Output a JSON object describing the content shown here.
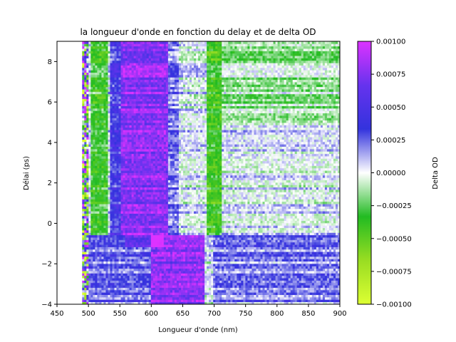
{
  "chart_data": {
    "type": "heatmap",
    "title": "la longueur d'onde en fonction du delay et de delta OD",
    "xlabel": "Longueur d'onde (nm)",
    "ylabel": "Délai (ps)",
    "xlim": [
      450,
      900
    ],
    "ylim": [
      -4,
      9
    ],
    "x_ticks": [
      "450",
      "500",
      "550",
      "600",
      "650",
      "700",
      "750",
      "800",
      "850",
      "900"
    ],
    "y_ticks": [
      "−4",
      "−2",
      "0",
      "2",
      "4",
      "6",
      "8"
    ],
    "data_x_start": 490,
    "colorbar": {
      "label": "Delta OD",
      "range": [
        -0.001,
        0.001
      ],
      "ticks": [
        "−0.00100",
        "−0.00075",
        "−0.00050",
        "−0.00025",
        "0.00000",
        "0.00025",
        "0.00050",
        "0.00075",
        "0.00100"
      ],
      "colormap": [
        "#ddff33",
        "#99dd22",
        "#22bb22",
        "#ffffff",
        "#3333dd",
        "#6633ee",
        "#dd33ff"
      ]
    },
    "features": [
      {
        "description": "strong positive band",
        "x_range": [
          550,
          625
        ],
        "y_range": [
          -0.6,
          9
        ],
        "value": 0.0008
      },
      {
        "description": "strong positive band (shifted)",
        "x_range": [
          600,
          685
        ],
        "y_range": [
          -4,
          -0.6
        ],
        "value": 0.0008
      },
      {
        "description": "negative band",
        "x_range": [
          690,
          710
        ],
        "y_range": [
          -0.6,
          9
        ],
        "value": -0.0004
      },
      {
        "description": "negative band",
        "x_range": [
          505,
          530
        ],
        "y_range": [
          -0.6,
          9
        ],
        "value": -0.0004
      },
      {
        "description": "noisy edge",
        "x_range": [
          490,
          500
        ],
        "y_range": [
          -4,
          9
        ],
        "value": 0
      }
    ]
  }
}
